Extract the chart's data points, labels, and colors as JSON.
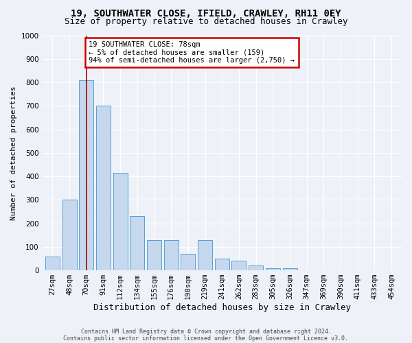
{
  "title1": "19, SOUTHWATER CLOSE, IFIELD, CRAWLEY, RH11 0EY",
  "title2": "Size of property relative to detached houses in Crawley",
  "xlabel": "Distribution of detached houses by size in Crawley",
  "ylabel": "Number of detached properties",
  "footer1": "Contains HM Land Registry data © Crown copyright and database right 2024.",
  "footer2": "Contains public sector information licensed under the Open Government Licence v3.0.",
  "categories": [
    "27sqm",
    "48sqm",
    "70sqm",
    "91sqm",
    "112sqm",
    "134sqm",
    "155sqm",
    "176sqm",
    "198sqm",
    "219sqm",
    "241sqm",
    "262sqm",
    "283sqm",
    "305sqm",
    "326sqm",
    "347sqm",
    "369sqm",
    "390sqm",
    "411sqm",
    "433sqm",
    "454sqm"
  ],
  "values": [
    60,
    300,
    810,
    700,
    415,
    230,
    130,
    130,
    70,
    130,
    50,
    40,
    20,
    10,
    10,
    0,
    0,
    0,
    0,
    0,
    0
  ],
  "bar_color": "#c5d8ed",
  "bar_edge_color": "#5a9fd4",
  "annotation_text": "19 SOUTHWATER CLOSE: 78sqm\n← 5% of detached houses are smaller (159)\n94% of semi-detached houses are larger (2,750) →",
  "annotation_box_color": "white",
  "annotation_box_edge_color": "#cc0000",
  "vline_color": "#aa0000",
  "vline_x_index": 2,
  "ylim": [
    0,
    1000
  ],
  "yticks": [
    0,
    100,
    200,
    300,
    400,
    500,
    600,
    700,
    800,
    900,
    1000
  ],
  "bg_color": "#eef2f8",
  "plot_bg_color": "#eef2f8",
  "grid_color": "#ffffff",
  "title1_fontsize": 10,
  "title2_fontsize": 9,
  "xlabel_fontsize": 9,
  "ylabel_fontsize": 8,
  "tick_fontsize": 7.5,
  "annot_fontsize": 7.5
}
